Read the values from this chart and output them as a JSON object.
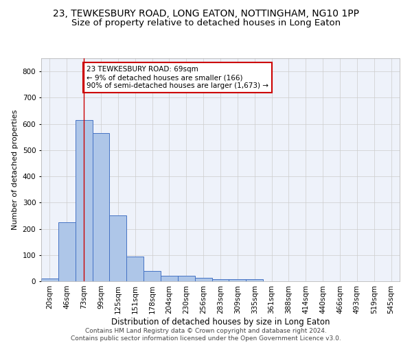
{
  "title": "23, TEWKESBURY ROAD, LONG EATON, NOTTINGHAM, NG10 1PP",
  "subtitle": "Size of property relative to detached houses in Long Eaton",
  "xlabel": "Distribution of detached houses by size in Long Eaton",
  "ylabel": "Number of detached properties",
  "bar_labels": [
    "20sqm",
    "46sqm",
    "73sqm",
    "99sqm",
    "125sqm",
    "151sqm",
    "178sqm",
    "204sqm",
    "230sqm",
    "256sqm",
    "283sqm",
    "309sqm",
    "335sqm",
    "361sqm",
    "388sqm",
    "414sqm",
    "440sqm",
    "466sqm",
    "493sqm",
    "519sqm",
    "545sqm"
  ],
  "bar_values": [
    10,
    225,
    615,
    565,
    250,
    93,
    40,
    20,
    20,
    13,
    8,
    8,
    8,
    0,
    0,
    0,
    0,
    0,
    0,
    0,
    0
  ],
  "bar_color": "#aec6e8",
  "bar_edge_color": "#4472c4",
  "background_color": "#eef2fa",
  "grid_color": "#cccccc",
  "vline_x": 2,
  "vline_color": "#cc0000",
  "annotation_text": "23 TEWKESBURY ROAD: 69sqm\n← 9% of detached houses are smaller (166)\n90% of semi-detached houses are larger (1,673) →",
  "annotation_box_color": "#ffffff",
  "annotation_box_edge_color": "#cc0000",
  "footer_text": "Contains HM Land Registry data © Crown copyright and database right 2024.\nContains public sector information licensed under the Open Government Licence v3.0.",
  "ylim": [
    0,
    850
  ],
  "yticks": [
    0,
    100,
    200,
    300,
    400,
    500,
    600,
    700,
    800
  ],
  "title_fontsize": 10,
  "subtitle_fontsize": 9.5,
  "xlabel_fontsize": 8.5,
  "ylabel_fontsize": 8,
  "tick_fontsize": 7.5,
  "annotation_fontsize": 7.5,
  "footer_fontsize": 6.5
}
